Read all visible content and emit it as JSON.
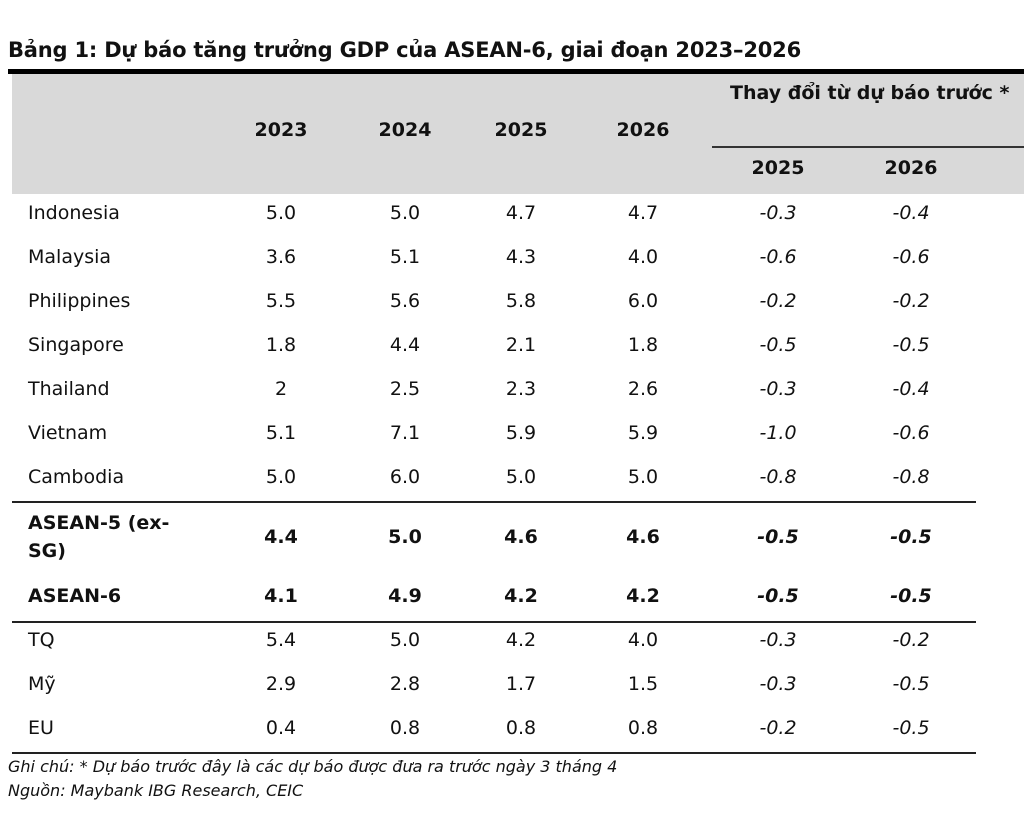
{
  "title": "Bảng 1: Dự báo tăng trưởng GDP của ASEAN-6, giai đoạn 2023–2026",
  "header": {
    "years": [
      "2023",
      "2024",
      "2025",
      "2026"
    ],
    "change_group": "Thay đổi từ dự báo trước *",
    "change_years": [
      "2025",
      "2026"
    ]
  },
  "rows": [
    {
      "label": "Indonesia",
      "values": [
        "5.0",
        "5.0",
        "4.7",
        "4.7"
      ],
      "changes": [
        "-0.3",
        "-0.4"
      ]
    },
    {
      "label": "Malaysia",
      "values": [
        "3.6",
        "5.1",
        "4.3",
        "4.0"
      ],
      "changes": [
        "-0.6",
        "-0.6"
      ]
    },
    {
      "label": "Philippines",
      "values": [
        "5.5",
        "5.6",
        "5.8",
        "6.0"
      ],
      "changes": [
        "-0.2",
        "-0.2"
      ]
    },
    {
      "label": "Singapore",
      "values": [
        "1.8",
        "4.4",
        "2.1",
        "1.8"
      ],
      "changes": [
        "-0.5",
        "-0.5"
      ]
    },
    {
      "label": "Thailand",
      "values": [
        "2",
        "2.5",
        "2.3",
        "2.6"
      ],
      "changes": [
        "-0.3",
        "-0.4"
      ]
    },
    {
      "label": "Vietnam",
      "values": [
        "5.1",
        "7.1",
        "5.9",
        "5.9"
      ],
      "changes": [
        "-1.0",
        "-0.6"
      ]
    },
    {
      "label": "Cambodia",
      "values": [
        "5.0",
        "6.0",
        "5.0",
        "5.0"
      ],
      "changes": [
        "-0.8",
        "-0.8"
      ]
    }
  ],
  "aggregates": [
    {
      "label_line1": "ASEAN-5 (ex-",
      "label_line2": "SG)",
      "values": [
        "4.4",
        "5.0",
        "4.6",
        "4.6"
      ],
      "changes": [
        "-0.5",
        "-0.5"
      ]
    },
    {
      "label": "ASEAN-6",
      "values": [
        "4.1",
        "4.9",
        "4.2",
        "4.2"
      ],
      "changes": [
        "-0.5",
        "-0.5"
      ]
    }
  ],
  "others": [
    {
      "label": "TQ",
      "values": [
        "5.4",
        "5.0",
        "4.2",
        "4.0"
      ],
      "changes": [
        "-0.3",
        "-0.2"
      ]
    },
    {
      "label": "Mỹ",
      "values": [
        "2.9",
        "2.8",
        "1.7",
        "1.5"
      ],
      "changes": [
        "-0.3",
        "-0.5"
      ]
    },
    {
      "label": "EU",
      "values": [
        "0.4",
        "0.8",
        "0.8",
        "0.8"
      ],
      "changes": [
        "-0.2",
        "-0.5"
      ]
    }
  ],
  "note": "Ghi chú: * Dự báo trước đây là các dự báo được đưa ra trước ngày 3 tháng 4",
  "source": "Nguồn: Maybank IBG Research, CEIC"
}
